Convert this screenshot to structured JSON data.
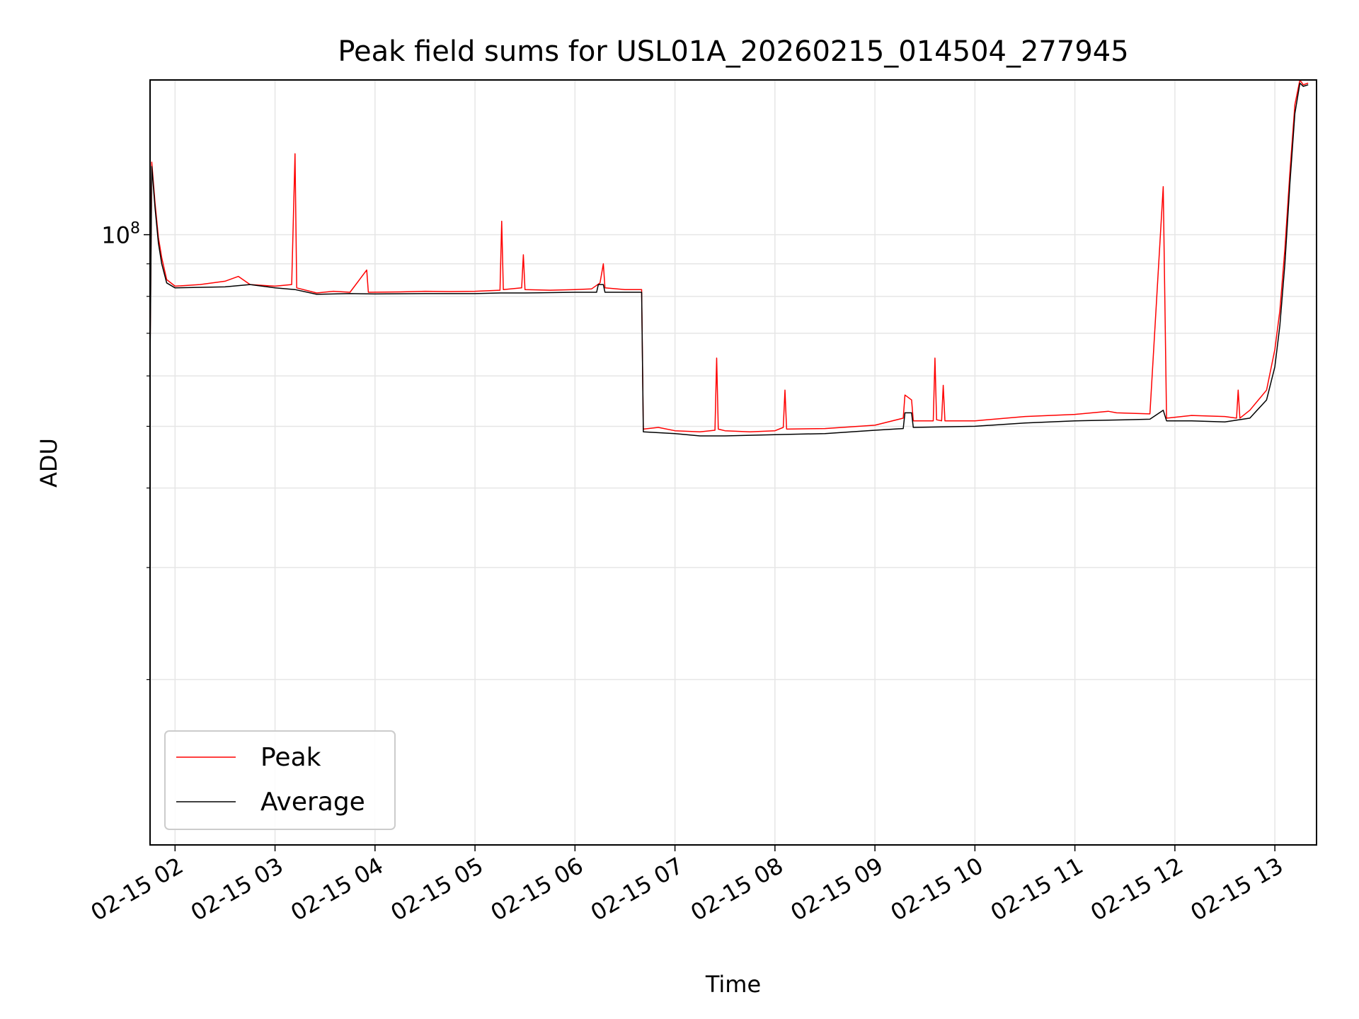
{
  "chart_data": {
    "type": "line",
    "title": "Peak field sums for USL01A_20260215_014504_277945",
    "xlabel": "Time",
    "ylabel": "ADU",
    "yscale": "log",
    "ylim": [
      11000000,
      175000000
    ],
    "xlim": [
      "2026-02-15 01:45",
      "2026-02-15 13:25"
    ],
    "x_ticks": [
      "2026-02-15 02:00",
      "2026-02-15 03:00",
      "2026-02-15 04:00",
      "2026-02-15 05:00",
      "2026-02-15 06:00",
      "2026-02-15 07:00",
      "2026-02-15 08:00",
      "2026-02-15 09:00",
      "2026-02-15 10:00",
      "2026-02-15 11:00",
      "2026-02-15 12:00",
      "2026-02-15 13:00"
    ],
    "x_tick_labels": [
      "02-15 02",
      "02-15 03",
      "02-15 04",
      "02-15 05",
      "02-15 06",
      "02-15 07",
      "02-15 08",
      "02-15 09",
      "02-15 10",
      "02-15 11",
      "02-15 12",
      "02-15 13"
    ],
    "y_ticks": [
      100000000
    ],
    "y_tick_label_base": "10",
    "y_tick_label_exp": "8",
    "y_minor_ticks": [
      20000000,
      30000000,
      40000000,
      50000000,
      60000000,
      70000000,
      80000000,
      90000000
    ],
    "grid": true,
    "legend": "lower-left",
    "series": [
      {
        "name": "Peak",
        "color": "#ff0000",
        "points": [
          [
            "2026-02-15 01:45",
            64000000
          ],
          [
            "2026-02-15 01:46",
            130000000
          ],
          [
            "2026-02-15 01:48",
            112000000
          ],
          [
            "2026-02-15 01:50",
            99000000
          ],
          [
            "2026-02-15 01:52",
            92000000
          ],
          [
            "2026-02-15 01:55",
            85000000
          ],
          [
            "2026-02-15 02:00",
            83000000
          ],
          [
            "2026-02-15 02:15",
            83500000
          ],
          [
            "2026-02-15 02:30",
            84500000
          ],
          [
            "2026-02-15 02:38",
            86000000
          ],
          [
            "2026-02-15 02:45",
            83500000
          ],
          [
            "2026-02-15 03:00",
            83000000
          ],
          [
            "2026-02-15 03:10",
            83500000
          ],
          [
            "2026-02-15 03:12",
            134000000
          ],
          [
            "2026-02-15 03:13",
            82500000
          ],
          [
            "2026-02-15 03:25",
            81000000
          ],
          [
            "2026-02-15 03:35",
            81500000
          ],
          [
            "2026-02-15 03:45",
            81200000
          ],
          [
            "2026-02-15 03:55",
            88000000
          ],
          [
            "2026-02-15 03:56",
            81200000
          ],
          [
            "2026-02-15 04:15",
            81300000
          ],
          [
            "2026-02-15 04:30",
            81500000
          ],
          [
            "2026-02-15 04:45",
            81400000
          ],
          [
            "2026-02-15 05:00",
            81500000
          ],
          [
            "2026-02-15 05:15",
            81800000
          ],
          [
            "2026-02-15 05:16",
            105000000
          ],
          [
            "2026-02-15 05:17",
            82000000
          ],
          [
            "2026-02-15 05:28",
            82500000
          ],
          [
            "2026-02-15 05:29",
            93000000
          ],
          [
            "2026-02-15 05:30",
            82000000
          ],
          [
            "2026-02-15 05:45",
            81800000
          ],
          [
            "2026-02-15 06:00",
            82000000
          ],
          [
            "2026-02-15 06:10",
            82200000
          ],
          [
            "2026-02-15 06:15",
            84000000
          ],
          [
            "2026-02-15 06:17",
            90000000
          ],
          [
            "2026-02-15 06:18",
            82500000
          ],
          [
            "2026-02-15 06:30",
            82000000
          ],
          [
            "2026-02-15 06:40",
            82000000
          ],
          [
            "2026-02-15 06:41",
            49500000
          ],
          [
            "2026-02-15 06:50",
            49800000
          ],
          [
            "2026-02-15 07:00",
            49200000
          ],
          [
            "2026-02-15 07:15",
            49000000
          ],
          [
            "2026-02-15 07:24",
            49300000
          ],
          [
            "2026-02-15 07:25",
            64000000
          ],
          [
            "2026-02-15 07:26",
            49500000
          ],
          [
            "2026-02-15 07:30",
            49200000
          ],
          [
            "2026-02-15 07:45",
            49000000
          ],
          [
            "2026-02-15 08:00",
            49200000
          ],
          [
            "2026-02-15 08:05",
            49800000
          ],
          [
            "2026-02-15 08:06",
            57000000
          ],
          [
            "2026-02-15 08:07",
            49500000
          ],
          [
            "2026-02-15 08:30",
            49600000
          ],
          [
            "2026-02-15 09:00",
            50200000
          ],
          [
            "2026-02-15 09:17",
            51500000
          ],
          [
            "2026-02-15 09:18",
            56000000
          ],
          [
            "2026-02-15 09:22",
            55000000
          ],
          [
            "2026-02-15 09:23",
            51000000
          ],
          [
            "2026-02-15 09:35",
            51000000
          ],
          [
            "2026-02-15 09:36",
            64000000
          ],
          [
            "2026-02-15 09:37",
            51200000
          ],
          [
            "2026-02-15 09:40",
            51000000
          ],
          [
            "2026-02-15 09:41",
            58000000
          ],
          [
            "2026-02-15 09:42",
            51000000
          ],
          [
            "2026-02-15 10:00",
            51000000
          ],
          [
            "2026-02-15 10:30",
            51800000
          ],
          [
            "2026-02-15 11:00",
            52200000
          ],
          [
            "2026-02-15 11:20",
            52800000
          ],
          [
            "2026-02-15 11:25",
            52500000
          ],
          [
            "2026-02-15 11:45",
            52300000
          ],
          [
            "2026-02-15 11:53",
            119000000
          ],
          [
            "2026-02-15 11:55",
            51500000
          ],
          [
            "2026-02-15 12:10",
            52000000
          ],
          [
            "2026-02-15 12:30",
            51800000
          ],
          [
            "2026-02-15 12:37",
            51500000
          ],
          [
            "2026-02-15 12:38",
            57000000
          ],
          [
            "2026-02-15 12:39",
            51500000
          ],
          [
            "2026-02-15 12:45",
            53000000
          ],
          [
            "2026-02-15 12:55",
            57000000
          ],
          [
            "2026-02-15 13:00",
            66000000
          ],
          [
            "2026-02-15 13:03",
            76000000
          ],
          [
            "2026-02-15 13:06",
            95000000
          ],
          [
            "2026-02-15 13:09",
            125000000
          ],
          [
            "2026-02-15 13:12",
            160000000
          ],
          [
            "2026-02-15 13:15",
            175000000
          ],
          [
            "2026-02-15 13:17",
            172000000
          ],
          [
            "2026-02-15 13:20",
            173000000
          ]
        ]
      },
      {
        "name": "Average",
        "color": "#000000",
        "points": [
          [
            "2026-02-15 01:45",
            62000000
          ],
          [
            "2026-02-15 01:46",
            128000000
          ],
          [
            "2026-02-15 01:48",
            110000000
          ],
          [
            "2026-02-15 01:50",
            97000000
          ],
          [
            "2026-02-15 01:52",
            90000000
          ],
          [
            "2026-02-15 01:55",
            84000000
          ],
          [
            "2026-02-15 02:00",
            82500000
          ],
          [
            "2026-02-15 02:30",
            82800000
          ],
          [
            "2026-02-15 02:45",
            83500000
          ],
          [
            "2026-02-15 03:00",
            82500000
          ],
          [
            "2026-02-15 03:12",
            82000000
          ],
          [
            "2026-02-15 03:25",
            80600000
          ],
          [
            "2026-02-15 03:45",
            80800000
          ],
          [
            "2026-02-15 04:00",
            80700000
          ],
          [
            "2026-02-15 04:30",
            80800000
          ],
          [
            "2026-02-15 05:00",
            80800000
          ],
          [
            "2026-02-15 05:15",
            81000000
          ],
          [
            "2026-02-15 05:30",
            81000000
          ],
          [
            "2026-02-15 06:00",
            81200000
          ],
          [
            "2026-02-15 06:13",
            81200000
          ],
          [
            "2026-02-15 06:14",
            83500000
          ],
          [
            "2026-02-15 06:17",
            83500000
          ],
          [
            "2026-02-15 06:18",
            81200000
          ],
          [
            "2026-02-15 06:40",
            81200000
          ],
          [
            "2026-02-15 06:41",
            49000000
          ],
          [
            "2026-02-15 07:00",
            48700000
          ],
          [
            "2026-02-15 07:15",
            48300000
          ],
          [
            "2026-02-15 07:30",
            48300000
          ],
          [
            "2026-02-15 08:00",
            48500000
          ],
          [
            "2026-02-15 08:30",
            48700000
          ],
          [
            "2026-02-15 09:00",
            49300000
          ],
          [
            "2026-02-15 09:17",
            49600000
          ],
          [
            "2026-02-15 09:18",
            52500000
          ],
          [
            "2026-02-15 09:22",
            52500000
          ],
          [
            "2026-02-15 09:23",
            49800000
          ],
          [
            "2026-02-15 09:40",
            49900000
          ],
          [
            "2026-02-15 10:00",
            50000000
          ],
          [
            "2026-02-15 10:30",
            50600000
          ],
          [
            "2026-02-15 11:00",
            51000000
          ],
          [
            "2026-02-15 11:30",
            51200000
          ],
          [
            "2026-02-15 11:45",
            51300000
          ],
          [
            "2026-02-15 11:53",
            53000000
          ],
          [
            "2026-02-15 11:55",
            51000000
          ],
          [
            "2026-02-15 12:10",
            51000000
          ],
          [
            "2026-02-15 12:30",
            50800000
          ],
          [
            "2026-02-15 12:45",
            51500000
          ],
          [
            "2026-02-15 12:55",
            55000000
          ],
          [
            "2026-02-15 13:00",
            62000000
          ],
          [
            "2026-02-15 13:03",
            72000000
          ],
          [
            "2026-02-15 13:06",
            90000000
          ],
          [
            "2026-02-15 13:09",
            120000000
          ],
          [
            "2026-02-15 13:12",
            155000000
          ],
          [
            "2026-02-15 13:15",
            173000000
          ],
          [
            "2026-02-15 13:17",
            171000000
          ],
          [
            "2026-02-15 13:20",
            172000000
          ]
        ]
      }
    ]
  }
}
